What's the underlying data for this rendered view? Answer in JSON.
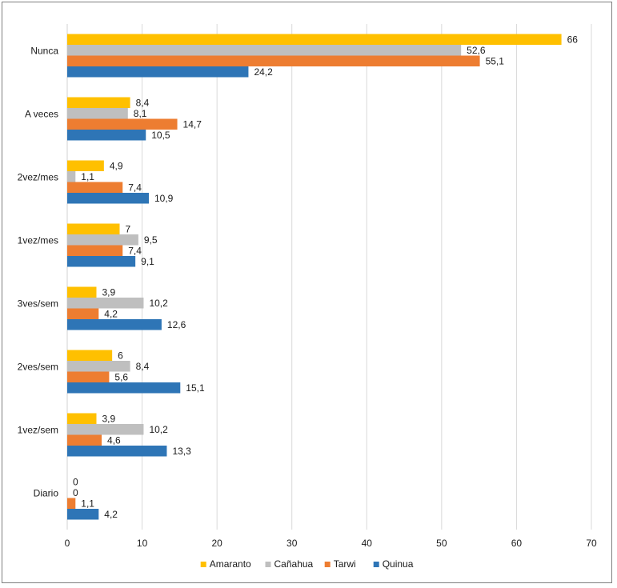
{
  "chart_data": {
    "type": "bar",
    "orientation": "horizontal",
    "categories": [
      "Nunca",
      "A veces",
      "2vez/mes",
      "1vez/mes",
      "3ves/sem",
      "2ves/sem",
      "1vez/sem",
      "Diario"
    ],
    "series": [
      {
        "name": "Amaranto",
        "color": "#FFC000",
        "values": [
          66,
          8.4,
          4.9,
          7,
          3.9,
          6,
          3.9,
          0
        ]
      },
      {
        "name": "Cañahua",
        "color": "#BFBFBF",
        "values": [
          52.6,
          8.1,
          1.1,
          9.5,
          10.2,
          8.4,
          10.2,
          0
        ]
      },
      {
        "name": "Tarwi",
        "color": "#ED7D31",
        "values": [
          55.1,
          14.7,
          7.4,
          7.4,
          4.2,
          5.6,
          4.6,
          1.1
        ]
      },
      {
        "name": "Quinua",
        "color": "#2E75B6",
        "values": [
          24.2,
          10.5,
          10.9,
          9.1,
          12.6,
          15.1,
          13.3,
          4.2
        ]
      }
    ],
    "data_labels": [
      [
        "66",
        "8,4",
        "4,9",
        "7",
        "3,9",
        "6",
        "3,9",
        "0"
      ],
      [
        "52,6",
        "8,1",
        "1,1",
        "9,5",
        "10,2",
        "8,4",
        "10,2",
        "0"
      ],
      [
        "55,1",
        "14,7",
        "7,4",
        "7,4",
        "4,2",
        "5,6",
        "4,6",
        "1,1"
      ],
      [
        "24,2",
        "10,5",
        "10,9",
        "9,1",
        "12,6",
        "15,1",
        "13,3",
        "4,2"
      ]
    ],
    "x_ticks": [
      0,
      10,
      20,
      30,
      40,
      50,
      60,
      70
    ],
    "xlim": [
      0,
      70
    ],
    "xlabel": "",
    "ylabel": "",
    "title": "",
    "grid": "vertical",
    "legend_position": "bottom"
  }
}
